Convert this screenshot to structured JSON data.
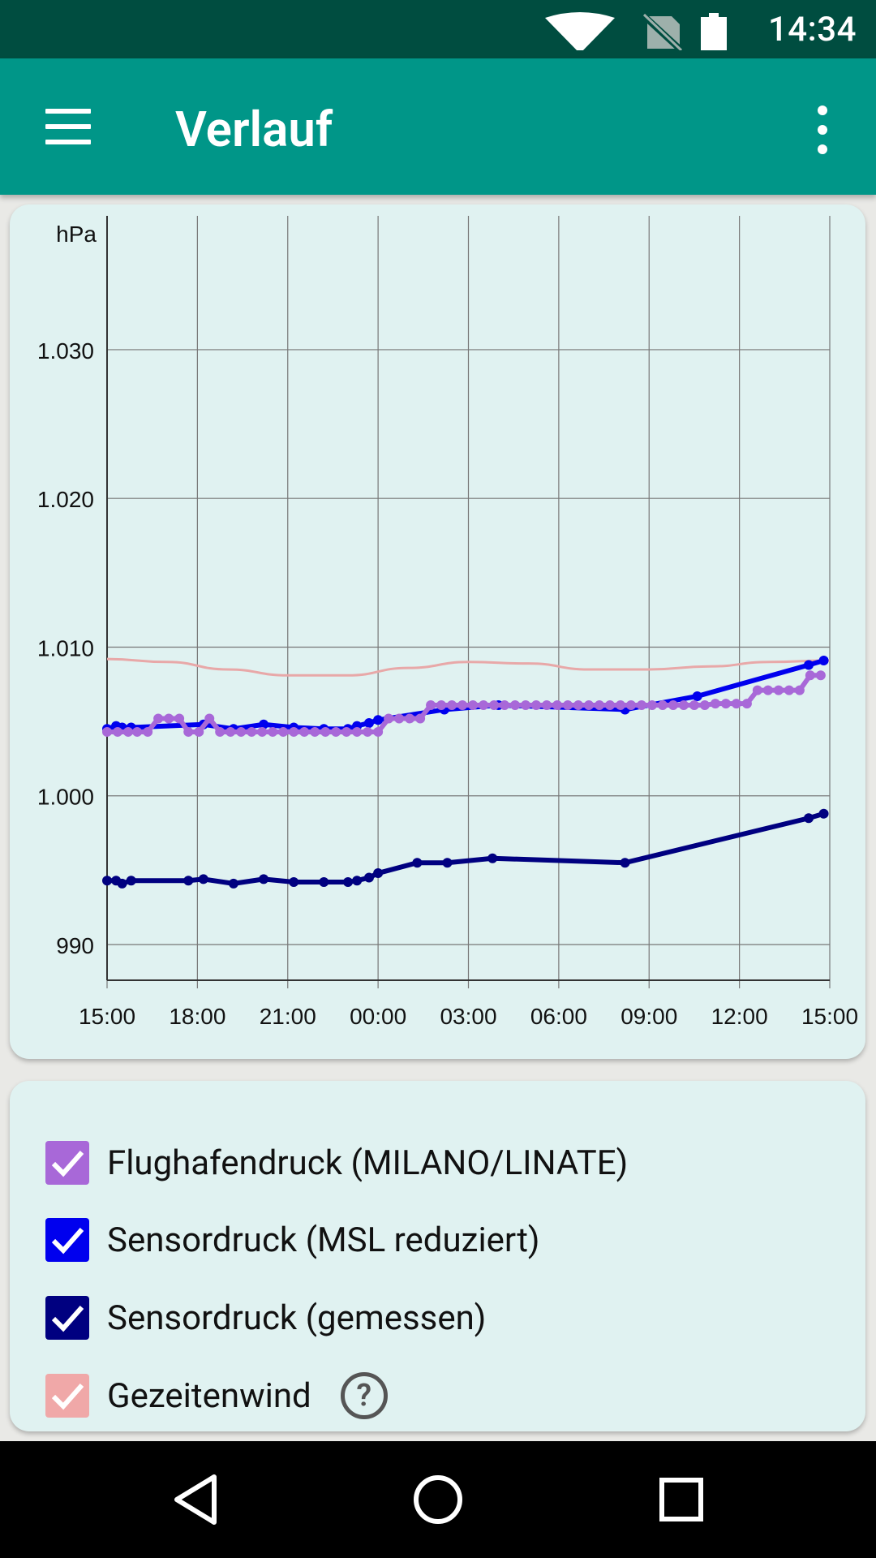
{
  "status": {
    "time": "14:34"
  },
  "appbar": {
    "title": "Verlauf"
  },
  "chart_data": {
    "type": "line",
    "ylabel": "hPa",
    "x_ticks": [
      "15:00",
      "18:00",
      "21:00",
      "00:00",
      "03:00",
      "06:00",
      "09:00",
      "12:00",
      "15:00"
    ],
    "y_ticks": [
      "1.030",
      "1.020",
      "1.010",
      "1.000",
      "990"
    ],
    "y_tick_values": [
      1030,
      1020,
      1010,
      1000,
      990
    ],
    "xlim": [
      0,
      24
    ],
    "ylim": [
      987.6,
      1039
    ],
    "grid": true,
    "series": [
      {
        "name": "Gezeitenwind",
        "color": "#e8a8a8",
        "markers": false,
        "x": [
          0,
          2,
          4,
          6,
          8,
          10,
          12,
          14,
          16,
          18,
          20,
          22,
          24
        ],
        "y": [
          1009.2,
          1009.0,
          1008.5,
          1008.1,
          1008.1,
          1008.6,
          1009.0,
          1008.9,
          1008.5,
          1008.5,
          1008.7,
          1009.0,
          1009.1
        ]
      },
      {
        "name": "Sensordruck (MSL reduziert)",
        "color": "#0000ee",
        "markers": true,
        "x": [
          0,
          0.3,
          0.5,
          0.8,
          3.2,
          4.2,
          5.2,
          6.2,
          7.2,
          8.0,
          8.3,
          8.7,
          9.0,
          11.2,
          13.0,
          17.2,
          19.6,
          23.3,
          23.8
        ],
        "y": [
          1004.5,
          1004.7,
          1004.6,
          1004.6,
          1004.8,
          1004.5,
          1004.8,
          1004.6,
          1004.5,
          1004.5,
          1004.7,
          1004.9,
          1005.1,
          1005.8,
          1006.1,
          1005.8,
          1006.7,
          1008.8,
          1009.1
        ]
      },
      {
        "name": "Flughafendruck (MILANO/LINATE)",
        "color": "#a868d8",
        "markers": true,
        "x": [
          0,
          0.35,
          0.7,
          1.0,
          1.35,
          1.7,
          2.05,
          2.4,
          2.7,
          3.05,
          3.4,
          3.75,
          4.1,
          4.45,
          4.8,
          5.15,
          5.5,
          5.85,
          6.2,
          6.55,
          6.9,
          7.25,
          7.6,
          7.95,
          8.3,
          8.65,
          9.0,
          9.35,
          9.7,
          10.05,
          10.4,
          10.75,
          11.1,
          11.45,
          11.8,
          12.15,
          12.5,
          12.85,
          13.2,
          13.55,
          13.9,
          14.25,
          14.6,
          14.95,
          15.3,
          15.65,
          16.0,
          16.35,
          16.7,
          17.05,
          17.4,
          17.75,
          18.1,
          18.45,
          18.8,
          19.15,
          19.5,
          19.85,
          20.2,
          20.55,
          20.9,
          21.25,
          21.6,
          21.95,
          22.3,
          22.65,
          23.0,
          23.35,
          23.7
        ],
        "y": [
          1004.3,
          1004.3,
          1004.3,
          1004.3,
          1004.3,
          1005.2,
          1005.2,
          1005.2,
          1004.3,
          1004.3,
          1005.2,
          1004.3,
          1004.3,
          1004.3,
          1004.3,
          1004.3,
          1004.3,
          1004.3,
          1004.3,
          1004.3,
          1004.3,
          1004.3,
          1004.3,
          1004.3,
          1004.3,
          1004.3,
          1004.3,
          1005.2,
          1005.2,
          1005.2,
          1005.2,
          1006.1,
          1006.1,
          1006.1,
          1006.1,
          1006.1,
          1006.1,
          1006.1,
          1006.1,
          1006.1,
          1006.1,
          1006.1,
          1006.1,
          1006.1,
          1006.1,
          1006.1,
          1006.1,
          1006.1,
          1006.1,
          1006.1,
          1006.1,
          1006.1,
          1006.1,
          1006.1,
          1006.1,
          1006.1,
          1006.1,
          1006.1,
          1006.2,
          1006.2,
          1006.2,
          1006.2,
          1007.1,
          1007.1,
          1007.1,
          1007.1,
          1007.1,
          1008.1,
          1008.1
        ]
      },
      {
        "name": "Sensordruck (gemessen)",
        "color": "#000080",
        "markers": true,
        "x": [
          0,
          0.3,
          0.5,
          0.8,
          2.7,
          3.2,
          4.2,
          5.2,
          6.2,
          7.2,
          8.0,
          8.3,
          8.7,
          9.0,
          10.3,
          11.3,
          12.8,
          17.2,
          23.3,
          23.8
        ],
        "y": [
          994.3,
          994.3,
          994.1,
          994.3,
          994.3,
          994.4,
          994.1,
          994.4,
          994.2,
          994.2,
          994.2,
          994.3,
          994.5,
          994.8,
          995.5,
          995.5,
          995.8,
          995.5,
          998.5,
          998.8
        ]
      }
    ]
  },
  "legend": {
    "items": [
      {
        "label": "Flughafendruck (MILANO/LINATE)",
        "color": "#a868d8"
      },
      {
        "label": "Sensordruck (MSL reduziert)",
        "color": "#0000ee"
      },
      {
        "label": "Sensordruck (gemessen)",
        "color": "#000080"
      },
      {
        "label": "Gezeitenwind",
        "color": "#f0a8a8"
      }
    ],
    "help": "?"
  },
  "nav": {
    "back": "back-icon",
    "home": "home-icon",
    "recents": "recents-icon"
  }
}
